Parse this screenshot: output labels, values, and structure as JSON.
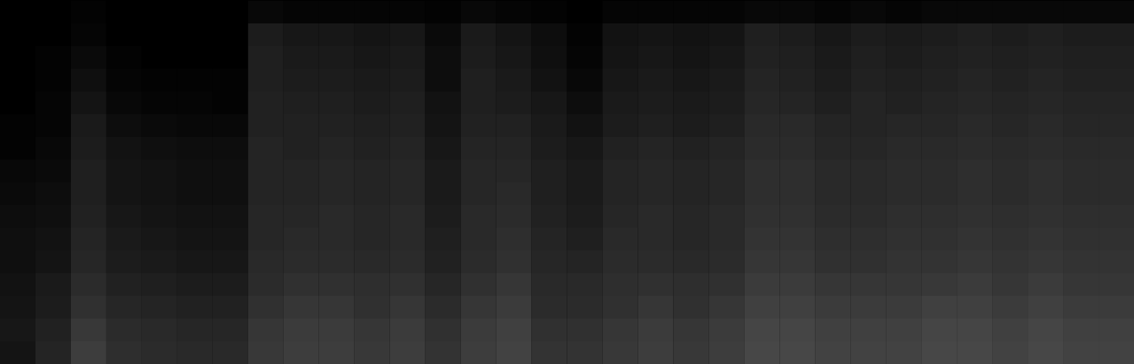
{
  "chart_data": {
    "type": "heatmap",
    "tick_labels": false,
    "zlim": [
      0,
      100
    ],
    "cells": [
      [
        0,
        0,
        1,
        0,
        0,
        0,
        0,
        3,
        2,
        2,
        2,
        2,
        1,
        3,
        2,
        1,
        0,
        2,
        2,
        2,
        2,
        3,
        3,
        2,
        3,
        2,
        3,
        3,
        3,
        3,
        3,
        3
      ],
      [
        0,
        0,
        2,
        0,
        0,
        0,
        0,
        11,
        9,
        9,
        8,
        9,
        4,
        10,
        8,
        5,
        1,
        7,
        8,
        7,
        8,
        12,
        11,
        9,
        11,
        10,
        11,
        12,
        11,
        12,
        11,
        11
      ],
      [
        0,
        1,
        4,
        1,
        0,
        0,
        0,
        12,
        10,
        10,
        9,
        10,
        5,
        11,
        9,
        6,
        2,
        8,
        9,
        8,
        9,
        13,
        12,
        10,
        12,
        11,
        12,
        13,
        12,
        13,
        12,
        12
      ],
      [
        0,
        1,
        6,
        2,
        1,
        1,
        1,
        12,
        11,
        11,
        10,
        11,
        5,
        12,
        10,
        7,
        3,
        9,
        10,
        9,
        10,
        14,
        13,
        11,
        13,
        12,
        13,
        14,
        13,
        14,
        13,
        13
      ],
      [
        0,
        2,
        8,
        3,
        2,
        2,
        1,
        13,
        12,
        12,
        11,
        12,
        7,
        12,
        11,
        9,
        5,
        10,
        11,
        10,
        11,
        15,
        14,
        12,
        14,
        13,
        14,
        15,
        14,
        15,
        14,
        14
      ],
      [
        1,
        2,
        10,
        5,
        4,
        3,
        3,
        13,
        13,
        13,
        12,
        13,
        8,
        13,
        13,
        10,
        7,
        11,
        12,
        11,
        12,
        16,
        16,
        14,
        14,
        15,
        15,
        16,
        15,
        16,
        15,
        15
      ],
      [
        1,
        3,
        11,
        7,
        6,
        5,
        5,
        14,
        13,
        14,
        13,
        14,
        9,
        14,
        14,
        11,
        9,
        13,
        14,
        13,
        14,
        17,
        17,
        15,
        15,
        16,
        16,
        17,
        16,
        17,
        16,
        16
      ],
      [
        3,
        4,
        12,
        8,
        7,
        6,
        6,
        14,
        14,
        15,
        14,
        15,
        10,
        15,
        15,
        12,
        10,
        14,
        15,
        14,
        15,
        18,
        18,
        16,
        16,
        17,
        17,
        18,
        17,
        18,
        17,
        17
      ],
      [
        4,
        5,
        12,
        8,
        7,
        6,
        6,
        14,
        14,
        15,
        14,
        15,
        10,
        15,
        16,
        12,
        10,
        14,
        15,
        14,
        15,
        18,
        18,
        16,
        16,
        17,
        17,
        18,
        17,
        18,
        17,
        17
      ],
      [
        5,
        6,
        13,
        9,
        8,
        7,
        7,
        15,
        15,
        16,
        15,
        16,
        11,
        16,
        17,
        13,
        11,
        15,
        16,
        15,
        16,
        19,
        19,
        17,
        17,
        18,
        18,
        19,
        18,
        19,
        18,
        18
      ],
      [
        6,
        7,
        14,
        10,
        9,
        8,
        8,
        15,
        16,
        16,
        15,
        16,
        12,
        16,
        18,
        14,
        12,
        16,
        16,
        15,
        16,
        20,
        20,
        18,
        18,
        19,
        19,
        20,
        19,
        20,
        19,
        19
      ],
      [
        6,
        8,
        15,
        11,
        10,
        9,
        9,
        16,
        17,
        17,
        16,
        17,
        13,
        17,
        19,
        15,
        14,
        17,
        17,
        16,
        17,
        21,
        21,
        19,
        19,
        20,
        20,
        21,
        20,
        21,
        20,
        20
      ],
      [
        7,
        10,
        17,
        13,
        12,
        11,
        11,
        17,
        19,
        19,
        18,
        19,
        15,
        19,
        21,
        16,
        16,
        18,
        19,
        18,
        19,
        23,
        23,
        21,
        21,
        21,
        22,
        23,
        21,
        23,
        21,
        21
      ],
      [
        8,
        11,
        19,
        15,
        14,
        13,
        13,
        19,
        21,
        21,
        19,
        21,
        17,
        21,
        23,
        17,
        17,
        19,
        21,
        19,
        21,
        25,
        25,
        23,
        23,
        23,
        25,
        25,
        23,
        25,
        23,
        23
      ],
      [
        9,
        13,
        22,
        17,
        16,
        15,
        15,
        21,
        23,
        23,
        21,
        23,
        19,
        23,
        25,
        19,
        19,
        21,
        23,
        21,
        23,
        27,
        27,
        25,
        25,
        25,
        27,
        27,
        25,
        27,
        25,
        25
      ],
      [
        8,
        14,
        24,
        18,
        17,
        16,
        16,
        22,
        24,
        24,
        22,
        24,
        20,
        24,
        26,
        20,
        20,
        22,
        24,
        22,
        24,
        28,
        28,
        26,
        26,
        26,
        28,
        28,
        26,
        28,
        26,
        26
      ]
    ]
  }
}
